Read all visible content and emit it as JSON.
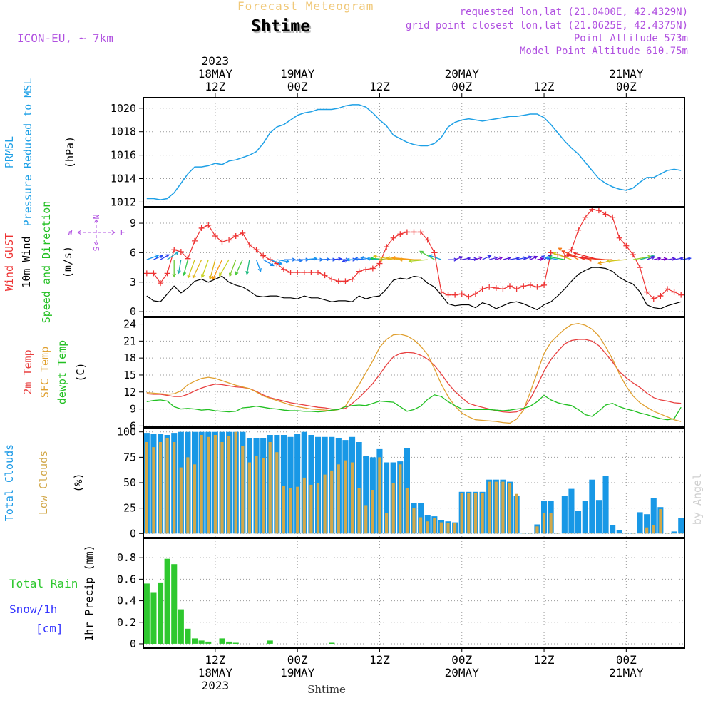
{
  "header": {
    "product": "Forecast Meteogram",
    "location": "Shtime",
    "model": "ICON-EU, ~ 7km",
    "requested": "requested lon,lat (21.0400E, 42.4329N)",
    "grid": "grid point closest lon,lat (21.0625E, 42.4375N)",
    "point_altitude": "Point Altitude 573m",
    "model_altitude": "Model Point Altitude 610.75m",
    "credit": "by Angel",
    "footer_location": "Shtime"
  },
  "colors": {
    "pressure": "#1ea0e6",
    "gust": "#ee3333",
    "wind_speed": "#000000",
    "temp2m": "#e84040",
    "sfc": "#e0a030",
    "dew": "#22c022",
    "total_clouds": "#1898e6",
    "low_clouds": "#d2a84a",
    "rain": "#2ec82e",
    "snow_label": "#3434ff",
    "compass": "#b050e0"
  },
  "time_axis": {
    "n_steps": 79,
    "step_hours": 1,
    "start": "2023-05-18 02Z",
    "top_ticks": [
      {
        "step": 10,
        "lines": [
          "2023",
          "18MAY",
          "12Z"
        ]
      },
      {
        "step": 22,
        "lines": [
          "19MAY",
          "00Z"
        ]
      },
      {
        "step": 34,
        "lines": [
          "12Z"
        ]
      },
      {
        "step": 46,
        "lines": [
          "20MAY",
          "00Z"
        ]
      },
      {
        "step": 58,
        "lines": [
          "12Z"
        ]
      },
      {
        "step": 70,
        "lines": [
          "21MAY",
          "00Z"
        ]
      }
    ],
    "bottom_ticks": [
      {
        "step": 10,
        "lines": [
          "12Z",
          "18MAY",
          "2023"
        ]
      },
      {
        "step": 22,
        "lines": [
          "00Z",
          "19MAY"
        ]
      },
      {
        "step": 34,
        "lines": [
          "12Z"
        ]
      },
      {
        "step": 46,
        "lines": [
          "00Z",
          "20MAY"
        ]
      },
      {
        "step": 58,
        "lines": [
          "12Z"
        ]
      },
      {
        "step": 70,
        "lines": [
          "00Z",
          "21MAY"
        ]
      }
    ]
  },
  "chart_data": [
    {
      "type": "line",
      "name": "pressure",
      "ylabels": [
        {
          "text": "PRMSL",
          "color": "#1ea0e6"
        },
        {
          "text": "Pressure Reduced to MSL",
          "color": "#1ea0e6"
        },
        {
          "text": "(hPa)",
          "color": "#000000"
        }
      ],
      "ylim": [
        1011.6,
        1020.9
      ],
      "yticks": [
        1012,
        1014,
        1016,
        1018,
        1020
      ],
      "grid": true,
      "series": [
        {
          "values": [
            1012.3,
            1012.3,
            1012.2,
            1012.3,
            1012.8,
            1013.6,
            1014.4,
            1015.0,
            1015.0,
            1015.1,
            1015.3,
            1015.2,
            1015.5,
            1015.6,
            1015.8,
            1016.0,
            1016.3,
            1017.0,
            1017.9,
            1018.4,
            1018.6,
            1019.0,
            1019.4,
            1019.6,
            1019.7,
            1019.9,
            1019.9,
            1019.9,
            1020.0,
            1020.2,
            1020.3,
            1020.3,
            1020.1,
            1019.6,
            1019.0,
            1018.5,
            1017.7,
            1017.4,
            1017.1,
            1016.9,
            1016.8,
            1016.8,
            1017.0,
            1017.5,
            1018.4,
            1018.8,
            1019.0,
            1019.1,
            1019.0,
            1018.9,
            1019.0,
            1019.1,
            1019.2,
            1019.3,
            1019.3,
            1019.4,
            1019.5,
            1019.5,
            1019.2,
            1018.6,
            1017.9,
            1017.2,
            1016.6,
            1016.1,
            1015.4,
            1014.7,
            1014.0,
            1013.6,
            1013.3,
            1013.1,
            1013.0,
            1013.2,
            1013.7,
            1014.1,
            1014.1,
            1014.4,
            1014.7,
            1014.8,
            1014.7
          ]
        }
      ]
    },
    {
      "type": "line",
      "name": "wind",
      "ylabels": [
        {
          "text": "Wind GUST",
          "color": "#ee3333"
        },
        {
          "text": "10m Wind",
          "color": "#000000"
        },
        {
          "text": "Speed and Direction",
          "color": "#22c022"
        },
        {
          "text": "(m/s)",
          "color": "#000000"
        }
      ],
      "compass": {
        "n": "N",
        "s": "S",
        "e": "E",
        "w": "W"
      },
      "ylim": [
        -0.5,
        10.6
      ],
      "yticks": [
        0,
        3,
        6,
        9
      ],
      "grid": true,
      "series": [
        {
          "name": "gust",
          "values": [
            3.9,
            3.9,
            2.9,
            3.9,
            6.3,
            6.1,
            5.4,
            7.2,
            8.5,
            8.8,
            7.7,
            7.1,
            7.3,
            7.7,
            8.0,
            6.8,
            6.3,
            5.7,
            5.3,
            4.9,
            4.3,
            4.0,
            4.0,
            4.0,
            4.0,
            4.0,
            3.7,
            3.3,
            3.1,
            3.1,
            3.3,
            4.1,
            4.3,
            4.4,
            4.9,
            6.6,
            7.5,
            7.9,
            8.1,
            8.1,
            8.1,
            7.3,
            6.0,
            2.0,
            1.7,
            1.7,
            1.8,
            1.5,
            1.8,
            2.3,
            2.5,
            2.4,
            2.3,
            2.6,
            2.3,
            2.6,
            2.7,
            2.5,
            2.7,
            6.0,
            5.8,
            5.6,
            6.3,
            8.3,
            9.6,
            10.4,
            10.3,
            9.9,
            9.6,
            7.5,
            6.7,
            5.8,
            4.5,
            2.0,
            1.3,
            1.6,
            2.3,
            2.0,
            1.7
          ]
        },
        {
          "name": "speed",
          "values": [
            1.6,
            1.1,
            1.0,
            1.8,
            2.6,
            1.9,
            2.4,
            3.1,
            3.3,
            3.0,
            3.3,
            3.6,
            3.0,
            2.7,
            2.5,
            2.1,
            1.6,
            1.5,
            1.6,
            1.6,
            1.4,
            1.4,
            1.3,
            1.6,
            1.4,
            1.4,
            1.2,
            1.0,
            1.1,
            1.1,
            1.0,
            1.6,
            1.3,
            1.5,
            1.6,
            2.3,
            3.2,
            3.4,
            3.3,
            3.6,
            3.5,
            2.9,
            2.5,
            1.7,
            0.8,
            0.6,
            0.7,
            0.7,
            0.4,
            0.9,
            0.7,
            0.3,
            0.6,
            0.9,
            1.0,
            0.8,
            0.5,
            0.2,
            0.7,
            1.0,
            1.6,
            2.3,
            3.1,
            3.8,
            4.2,
            4.5,
            4.5,
            4.4,
            4.1,
            3.5,
            3.1,
            2.8,
            2.0,
            0.7,
            0.4,
            0.3,
            0.6,
            0.8,
            1.0
          ]
        },
        {
          "name": "direction",
          "values": [
            250,
            245,
            240,
            235,
            0,
            10,
            15,
            20,
            25,
            20,
            15,
            25,
            30,
            20,
            25,
            10,
            340,
            300,
            290,
            280,
            270,
            275,
            270,
            265,
            270,
            268,
            270,
            265,
            270,
            270,
            80,
            90,
            95,
            100,
            95,
            95,
            100,
            90,
            95,
            95,
            90,
            85,
            120,
            110,
            270,
            250,
            260,
            265,
            250,
            245,
            255,
            250,
            255,
            260,
            258,
            250,
            245,
            260,
            240,
            110,
            100,
            100,
            110,
            120,
            110,
            100,
            105,
            95,
            90,
            80,
            85,
            260,
            255,
            250,
            258,
            262,
            262,
            260,
            262
          ]
        }
      ]
    },
    {
      "type": "line",
      "name": "temperature",
      "ylabels": [
        {
          "text": "2m Temp",
          "color": "#e84040"
        },
        {
          "text": "SFC Temp",
          "color": "#e0a030"
        },
        {
          "text": "dewpt Temp",
          "color": "#22c022"
        },
        {
          "text": "(C)",
          "color": "#000000"
        }
      ],
      "ylim": [
        5.8,
        25.2
      ],
      "yticks": [
        6,
        9,
        12,
        15,
        18,
        21,
        24
      ],
      "grid": true,
      "series": [
        {
          "name": "2m Temp",
          "values": [
            11.7,
            11.6,
            11.6,
            11.4,
            11.2,
            11.2,
            11.6,
            12.2,
            12.7,
            13.1,
            13.4,
            13.3,
            13.1,
            12.9,
            12.8,
            12.6,
            12.1,
            11.5,
            11.0,
            10.7,
            10.4,
            10.1,
            9.9,
            9.7,
            9.5,
            9.3,
            9.2,
            9.0,
            9.0,
            9.1,
            10.0,
            11.0,
            12.2,
            13.5,
            15.1,
            16.8,
            18.2,
            18.8,
            19.0,
            18.9,
            18.5,
            17.8,
            16.7,
            15.2,
            13.5,
            12.1,
            11.0,
            10.0,
            9.6,
            9.3,
            9.0,
            8.7,
            8.5,
            8.4,
            8.5,
            9.0,
            10.8,
            13.1,
            15.7,
            17.7,
            19.2,
            20.5,
            21.1,
            21.3,
            21.3,
            21.0,
            20.2,
            18.8,
            17.3,
            15.6,
            14.5,
            13.6,
            12.8,
            11.8,
            11.0,
            10.6,
            10.4,
            10.1,
            10.0
          ]
        },
        {
          "name": "SFC Temp",
          "values": [
            11.9,
            11.8,
            11.7,
            11.6,
            11.7,
            12.2,
            13.3,
            13.9,
            14.4,
            14.6,
            14.4,
            14.0,
            13.6,
            13.2,
            12.9,
            12.6,
            12.0,
            11.3,
            10.9,
            10.5,
            10.1,
            9.7,
            9.4,
            9.2,
            9.0,
            8.9,
            8.8,
            8.7,
            8.9,
            9.5,
            11.4,
            13.3,
            15.4,
            17.5,
            19.9,
            21.3,
            22.1,
            22.2,
            21.9,
            21.2,
            20.1,
            18.6,
            16.1,
            13.4,
            11.2,
            9.5,
            8.3,
            7.6,
            7.1,
            7.0,
            6.9,
            6.8,
            6.6,
            6.5,
            7.2,
            8.8,
            12.0,
            15.4,
            18.8,
            20.8,
            22.0,
            23.1,
            23.9,
            24.1,
            23.8,
            23.1,
            21.9,
            20.0,
            17.8,
            15.2,
            13.0,
            11.3,
            10.1,
            9.3,
            8.6,
            8.1,
            7.6,
            7.1,
            6.8
          ]
        },
        {
          "name": "dewpt Temp",
          "values": [
            10.3,
            10.5,
            10.6,
            10.4,
            9.4,
            9.0,
            9.1,
            9.0,
            8.8,
            8.9,
            8.7,
            8.6,
            8.5,
            8.6,
            9.2,
            9.3,
            9.5,
            9.3,
            9.1,
            9.0,
            8.8,
            8.7,
            8.7,
            8.6,
            8.6,
            8.5,
            8.6,
            8.8,
            8.9,
            9.4,
            9.6,
            9.7,
            9.6,
            10.0,
            10.4,
            10.3,
            10.2,
            9.4,
            8.6,
            8.9,
            9.5,
            10.7,
            11.5,
            11.2,
            10.3,
            9.6,
            9.0,
            8.9,
            8.9,
            8.9,
            8.9,
            8.8,
            8.7,
            8.8,
            9.0,
            9.1,
            9.5,
            10.3,
            11.4,
            10.6,
            10.1,
            9.8,
            9.6,
            8.9,
            8.0,
            7.7,
            8.6,
            9.7,
            10.0,
            9.4,
            9.0,
            8.7,
            8.3,
            8.0,
            7.6,
            7.3,
            7.1,
            7.3,
            9.3
          ]
        }
      ]
    },
    {
      "type": "bar",
      "name": "clouds",
      "ylabels": [
        {
          "text": "Total Clouds",
          "color": "#1898e6"
        },
        {
          "text": "Low Clouds",
          "color": "#d2a84a"
        },
        {
          "text": "(%)",
          "color": "#000000"
        }
      ],
      "ylim": [
        -4,
        104
      ],
      "yticks": [
        0,
        25,
        50,
        75,
        100
      ],
      "grid": true,
      "series": [
        {
          "name": "Total Clouds",
          "values": [
            99,
            98,
            98,
            97,
            99,
            100,
            100,
            100,
            100,
            100,
            100,
            100,
            100,
            100,
            100,
            94,
            94,
            94,
            97,
            97,
            97,
            95,
            98,
            100,
            97,
            95,
            95,
            95,
            94,
            92,
            95,
            90,
            76,
            75,
            83,
            70,
            70,
            71,
            84,
            30,
            30,
            18,
            17,
            13,
            12,
            11,
            41,
            41,
            41,
            41,
            53,
            53,
            53,
            51,
            37,
            0,
            0,
            9,
            32,
            32,
            0,
            37,
            44,
            22,
            32,
            53,
            33,
            57,
            8,
            3,
            0,
            0,
            21,
            19,
            35,
            26,
            0,
            2,
            15
          ]
        },
        {
          "name": "Low Clouds",
          "values": [
            90,
            85,
            90,
            94,
            90,
            65,
            75,
            68,
            97,
            95,
            97,
            90,
            96,
            100,
            86,
            70,
            76,
            74,
            90,
            80,
            47,
            45,
            46,
            55,
            48,
            50,
            58,
            62,
            68,
            72,
            70,
            45,
            28,
            43,
            75,
            20,
            50,
            68,
            45,
            25,
            16,
            12,
            15,
            11,
            10,
            10,
            40,
            40,
            40,
            40,
            51,
            51,
            51,
            50,
            39,
            0,
            0,
            7,
            20,
            20,
            0,
            0,
            0,
            0,
            0,
            0,
            0,
            0,
            0,
            0,
            0,
            0,
            0,
            6,
            8,
            24,
            0,
            0,
            0
          ]
        }
      ]
    },
    {
      "type": "bar",
      "name": "precipitation",
      "ylabels": [
        {
          "text": "1hr Precip (mm)",
          "color": "#000000"
        }
      ],
      "left_labels": [
        {
          "text": "Total  Rain",
          "color": "#2ec82e"
        },
        {
          "text": "Snow/1h",
          "color": "#3434ff"
        },
        {
          "text": "[cm]",
          "color": "#3434ff"
        }
      ],
      "ylim": [
        -0.04,
        0.98
      ],
      "yticks": [
        0,
        0.2,
        0.4,
        0.6,
        0.8
      ],
      "grid": true,
      "series": [
        {
          "name": "Total Rain",
          "values": [
            0.56,
            0.48,
            0.57,
            0.79,
            0.74,
            0.32,
            0.14,
            0.05,
            0.03,
            0.02,
            0,
            0.05,
            0.02,
            0.01,
            0,
            0,
            0,
            0,
            0.03,
            0,
            0,
            0,
            0,
            0,
            0,
            0,
            0,
            0.01,
            0,
            0,
            0,
            0,
            0,
            0,
            0,
            0,
            0,
            0,
            0,
            0,
            0,
            0,
            0,
            0,
            0,
            0,
            0,
            0,
            0,
            0,
            0,
            0,
            0,
            0,
            0,
            0,
            0,
            0,
            0,
            0,
            0,
            0,
            0,
            0,
            0,
            0,
            0,
            0,
            0,
            0,
            0,
            0,
            0,
            0,
            0,
            0,
            0,
            0,
            0
          ]
        }
      ]
    }
  ]
}
